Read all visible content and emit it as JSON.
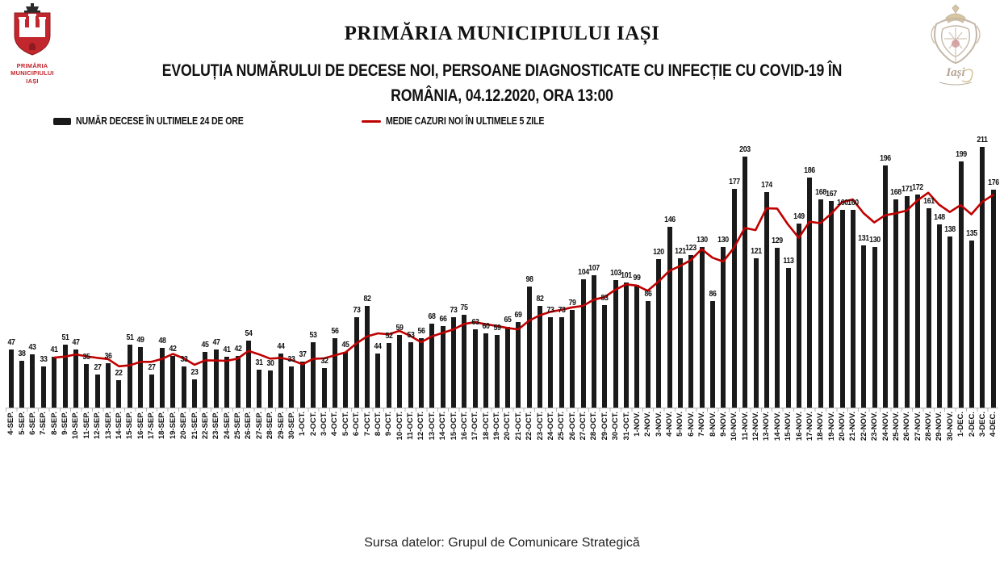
{
  "header": {
    "title": "PRIMĂRIA MUNICIPIULUI IAȘI",
    "subtitle_line1": "EVOLUȚIA NUMĂRULUI DE DECESE NOI, PERSOANE DIAGNOSTICATE CU INFECȚIE CU COVID-19 ÎN",
    "subtitle_line2": "ROMÂNIA, 04.12.2020, ORA 13:00"
  },
  "logo": {
    "caption_line1": "PRIMĂRIA",
    "caption_line2": "MUNICIPIULUI",
    "caption_line3": "IAȘI",
    "right_watermark_text": "Iași"
  },
  "legend": {
    "bars_label": "NUMĂR DECESE ÎN ULTIMELE 24 DE ORE",
    "line_label": "MEDIE CAZURI NOI ÎN ULTIMELE 5 ZILE"
  },
  "footer": {
    "source": "Sursa datelor: Grupul de Comunicare Strategică"
  },
  "colors": {
    "bar": "#1a1a1a",
    "line": "#c00000",
    "logo_red": "#c1272d"
  },
  "chart_data": {
    "type": "bar",
    "title": "EVOLUȚIA NUMĂRULUI DE DECESE NOI, PERSOANE DIAGNOSTICATE CU INFECȚIE CU COVID-19 ÎN ROMÂNIA, 04.12.2020, ORA 13:00",
    "xlabel": "",
    "ylabel": "",
    "ylim": [
      0,
      225
    ],
    "grid": false,
    "legend_position": "top-left",
    "data_labels": true,
    "categories": [
      "4-SEP.",
      "5-SEP.",
      "6-SEP.",
      "7-SEP.",
      "8-SEP.",
      "9-SEP.",
      "10-SEP.",
      "11-SEP.",
      "12-SEP.",
      "13-SEP.",
      "14-SEP.",
      "15-SEP.",
      "16-SEP.",
      "17-SEP.",
      "18-SEP.",
      "19-SEP.",
      "20-SEP.",
      "21-SEP.",
      "22-SEP.",
      "23-SEP.",
      "24-SEP.",
      "25-SEP.",
      "26-SEP.",
      "27-SEP.",
      "28-SEP.",
      "29-SEP.",
      "30-SEP.",
      "1-OCT.",
      "2-OCT.",
      "3-OCT.",
      "4-OCT.",
      "5-OCT.",
      "6-OCT.",
      "7-OCT.",
      "8-OCT.",
      "9-OCT.",
      "10-OCT.",
      "11-OCT.",
      "12-OCT.",
      "13-OCT.",
      "14-OCT.",
      "15-OCT.",
      "16-OCT.",
      "17-OCT.",
      "18-OCT.",
      "19-OCT.",
      "20-OCT.",
      "21-OCT.",
      "22-OCT.",
      "23-OCT.",
      "24-OCT.",
      "25-OCT.",
      "26-OCT.",
      "27-OCT.",
      "28-OCT.",
      "29-OCT.",
      "30-OCT.",
      "31-OCT.",
      "1-NOV.",
      "2-NOV.",
      "3-NOV.",
      "4-NOV.",
      "5-NOV.",
      "6-NOV.",
      "7-NOV.",
      "8-NOV.",
      "9-NOV.",
      "10-NOV.",
      "11-NOV.",
      "12-NOV.",
      "13-NOV.",
      "14-NOV.",
      "15-NOV.",
      "16-NOV.",
      "17-NOV.",
      "18-NOV.",
      "19-NOV.",
      "20-NOV.",
      "21-NOV.",
      "22-NOV.",
      "23-NOV.",
      "24-NOV.",
      "25-NOV.",
      "26-NOV.",
      "27-NOV.",
      "28-NOV.",
      "29-NOV.",
      "30-NOV.",
      "1-DEC.",
      "2-DEC.",
      "3-DEC.",
      "4-DEC."
    ],
    "series": [
      {
        "name": "NUMĂR DECESE ÎN ULTIMELE 24 DE ORE",
        "type": "bar",
        "values": [
          47,
          38,
          43,
          33,
          41,
          51,
          47,
          35,
          27,
          36,
          22,
          51,
          49,
          27,
          48,
          42,
          33,
          23,
          45,
          47,
          41,
          42,
          54,
          31,
          30,
          44,
          33,
          37,
          53,
          32,
          56,
          45,
          73,
          82,
          44,
          52,
          59,
          53,
          56,
          68,
          66,
          73,
          75,
          63,
          60,
          59,
          65,
          69,
          98,
          82,
          73,
          73,
          79,
          104,
          107,
          83,
          103,
          101,
          99,
          86,
          120,
          146,
          121,
          123,
          130,
          86,
          130,
          177,
          203,
          121,
          174,
          129,
          113,
          149,
          186,
          168,
          167,
          160,
          160,
          131,
          130,
          196,
          168,
          171,
          172,
          161,
          148,
          138,
          199,
          135,
          211,
          176
        ]
      },
      {
        "name": "MEDIE CAZURI NOI ÎN ULTIMELE 5 ZILE",
        "type": "line",
        "derivation": "trailing 5-day mean of daily deaths, first plotted on the 5th day",
        "values": [
          null,
          null,
          null,
          null,
          40.4,
          41.2,
          43,
          41.4,
          40.2,
          39.2,
          33.4,
          34.2,
          37,
          37,
          39.4,
          43.4,
          39.8,
          34.6,
          38.2,
          38,
          37.8,
          39.6,
          45.8,
          43,
          39.6,
          40.2,
          38.4,
          35,
          39.4,
          39.8,
          42.2,
          44.6,
          51.8,
          57.6,
          60,
          59.2,
          62,
          58,
          52.8,
          57.6,
          60.4,
          63.2,
          67.6,
          69,
          67.4,
          66,
          64.4,
          63.2,
          70.2,
          74.6,
          77.4,
          79,
          81,
          82.2,
          87.2,
          89.2,
          95.2,
          99.6,
          98.6,
          94.4,
          101.8,
          110.4,
          114.4,
          119.2,
          128,
          121.2,
          118,
          129.2,
          145.2,
          143.4,
          161,
          160.8,
          148,
          137.2,
          150.2,
          149,
          156.6,
          166,
          168.2,
          157.2,
          149.6,
          155.4,
          157,
          159.2,
          167.4,
          173.6,
          164,
          158,
          163.6,
          156.2,
          166.2,
          171.8
        ]
      }
    ]
  }
}
